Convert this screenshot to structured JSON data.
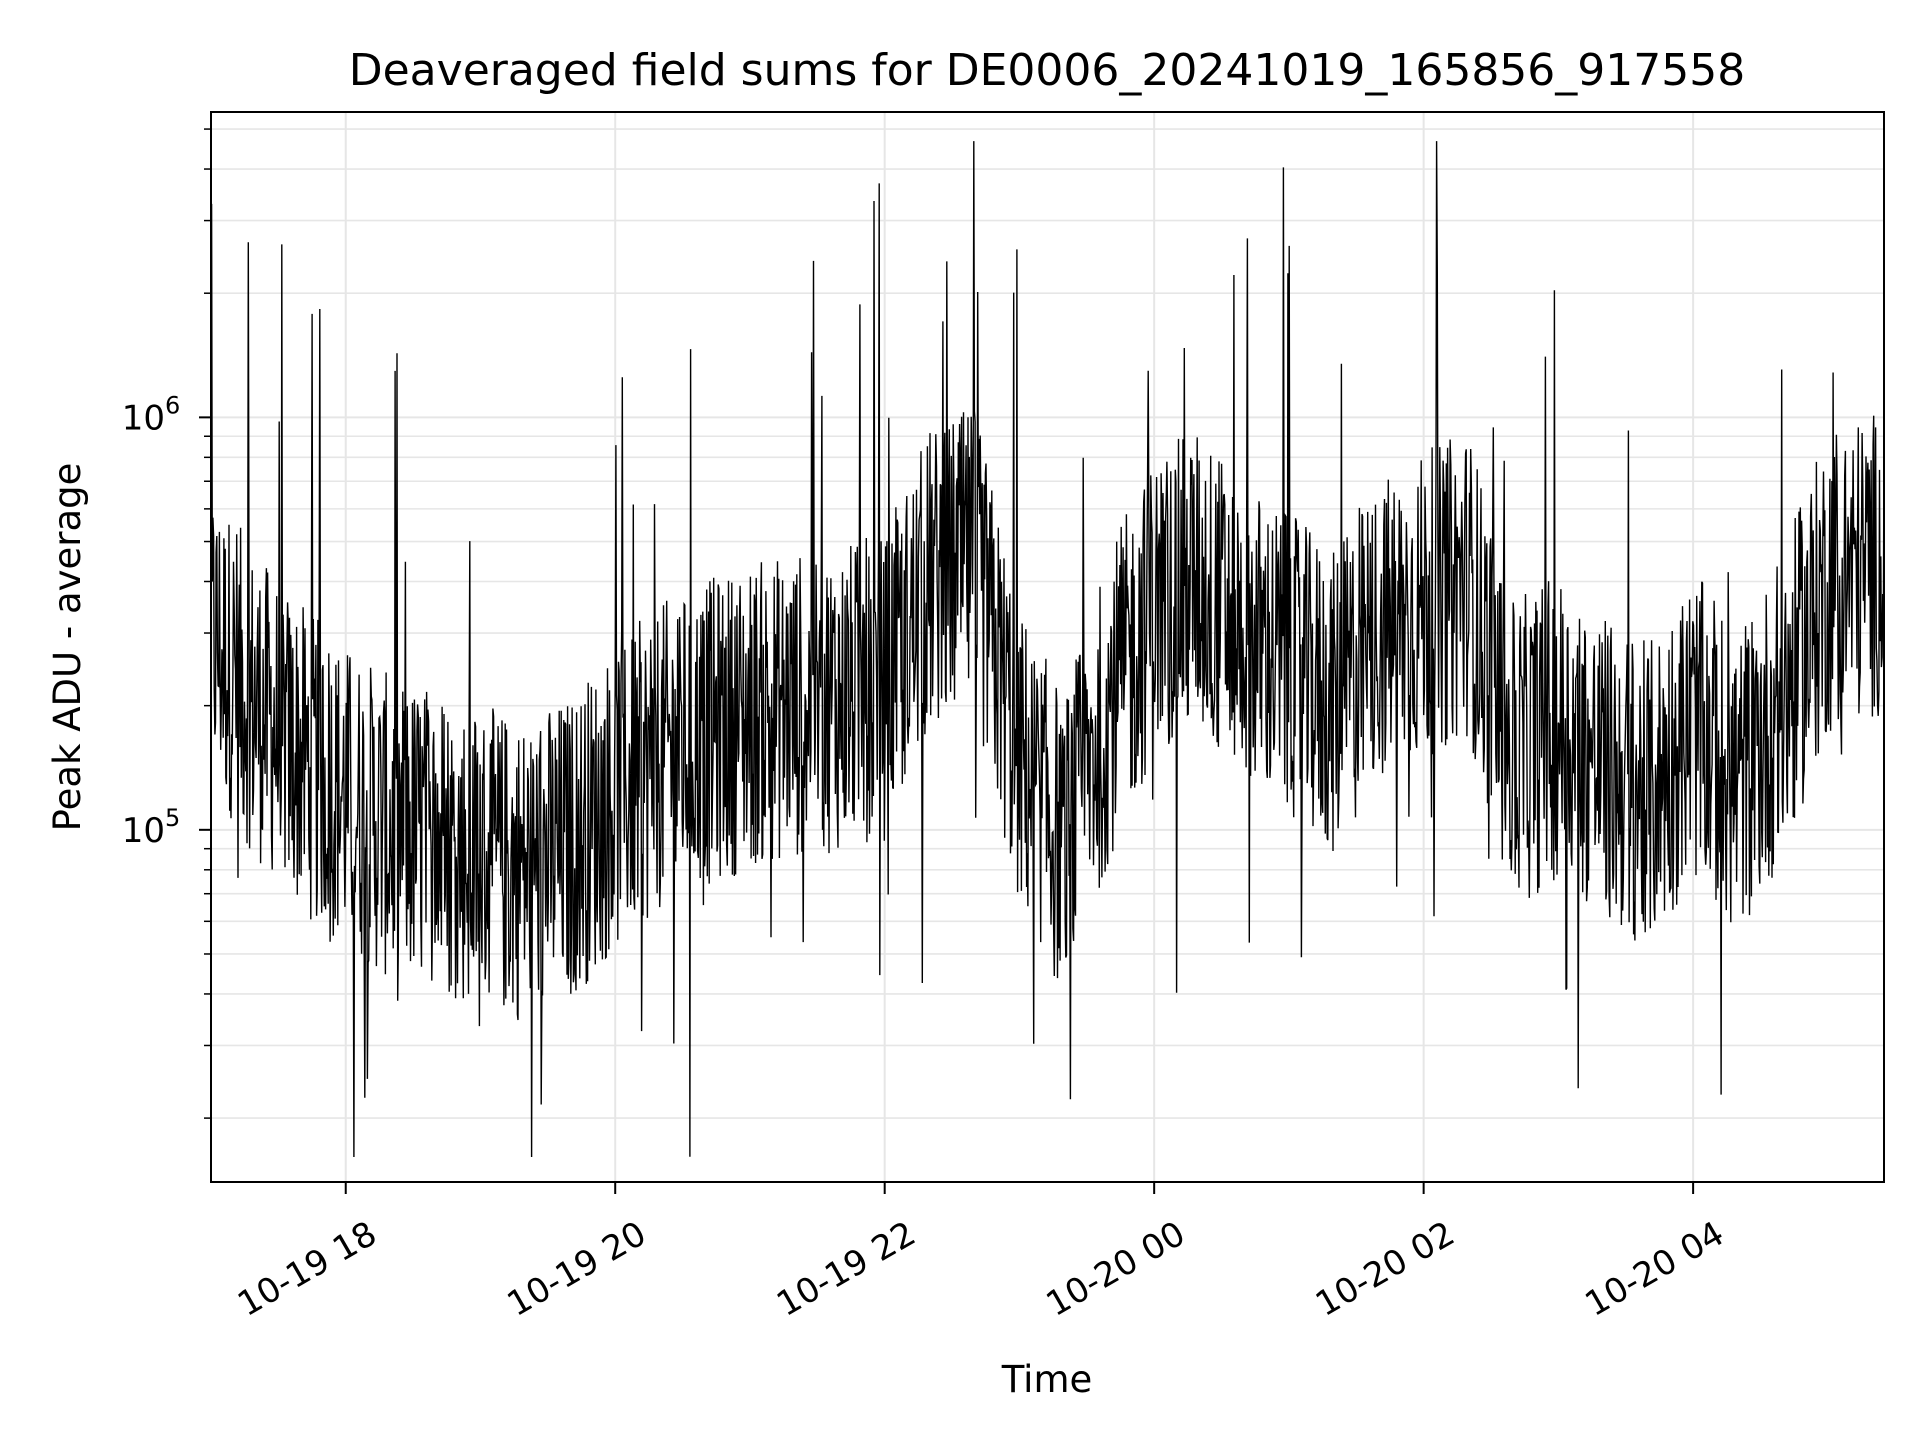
{
  "chart_data": {
    "type": "line",
    "title": "Deaveraged field sums for DE0006_20241019_165856_917558",
    "xlabel": "Time",
    "ylabel": "Peak ADU - average",
    "y_scale": "log",
    "ylim": [
      14000,
      5500000
    ],
    "xlim": [
      "2024-10-19 17:00",
      "2024-10-20 05:25"
    ],
    "x_ticks": [
      {
        "value": "2024-10-19 18:00",
        "label": "10-19 18"
      },
      {
        "value": "2024-10-19 20:00",
        "label": "10-19 20"
      },
      {
        "value": "2024-10-19 22:00",
        "label": "10-19 22"
      },
      {
        "value": "2024-10-20 00:00",
        "label": "10-20 00"
      },
      {
        "value": "2024-10-20 02:00",
        "label": "10-20 02"
      },
      {
        "value": "2024-10-20 04:00",
        "label": "10-20 04"
      }
    ],
    "y_ticks": [
      {
        "value": 100000,
        "base": "10",
        "exp": "5"
      },
      {
        "value": 1000000,
        "base": "10",
        "exp": "6"
      }
    ],
    "grid": true,
    "line_color": "#000000",
    "grid_color": "#e6e6e6",
    "series": [
      {
        "x": [
          "2024-10-19 17:00",
          "2024-10-19 17:20",
          "2024-10-19 17:40",
          "2024-10-19 18:00",
          "2024-10-19 18:20",
          "2024-10-19 18:40",
          "2024-10-19 19:00",
          "2024-10-19 19:20",
          "2024-10-19 19:40",
          "2024-10-19 20:00",
          "2024-10-19 20:20",
          "2024-10-19 20:40",
          "2024-10-19 21:00",
          "2024-10-19 21:20",
          "2024-10-19 21:40",
          "2024-10-19 22:00",
          "2024-10-19 22:20",
          "2024-10-19 22:40",
          "2024-10-19 23:00",
          "2024-10-19 23:20",
          "2024-10-19 23:40",
          "2024-10-20 00:00",
          "2024-10-20 00:20",
          "2024-10-20 00:40",
          "2024-10-20 01:00",
          "2024-10-20 01:20",
          "2024-10-20 01:40",
          "2024-10-20 02:00",
          "2024-10-20 02:20",
          "2024-10-20 02:40",
          "2024-10-20 03:00",
          "2024-10-20 03:20",
          "2024-10-20 03:40",
          "2024-10-20 04:00",
          "2024-10-20 04:20",
          "2024-10-20 04:40",
          "2024-10-20 05:00",
          "2024-10-20 05:25"
        ],
        "values": [
          300000,
          200000,
          150000,
          120000,
          100000,
          95000,
          85000,
          80000,
          90000,
          120000,
          150000,
          170000,
          190000,
          200000,
          210000,
          220000,
          400000,
          450000,
          150000,
          90000,
          200000,
          350000,
          400000,
          300000,
          250000,
          200000,
          300000,
          350000,
          400000,
          150000,
          180000,
          140000,
          120000,
          180000,
          130000,
          200000,
          400000,
          450000
        ]
      }
    ]
  }
}
